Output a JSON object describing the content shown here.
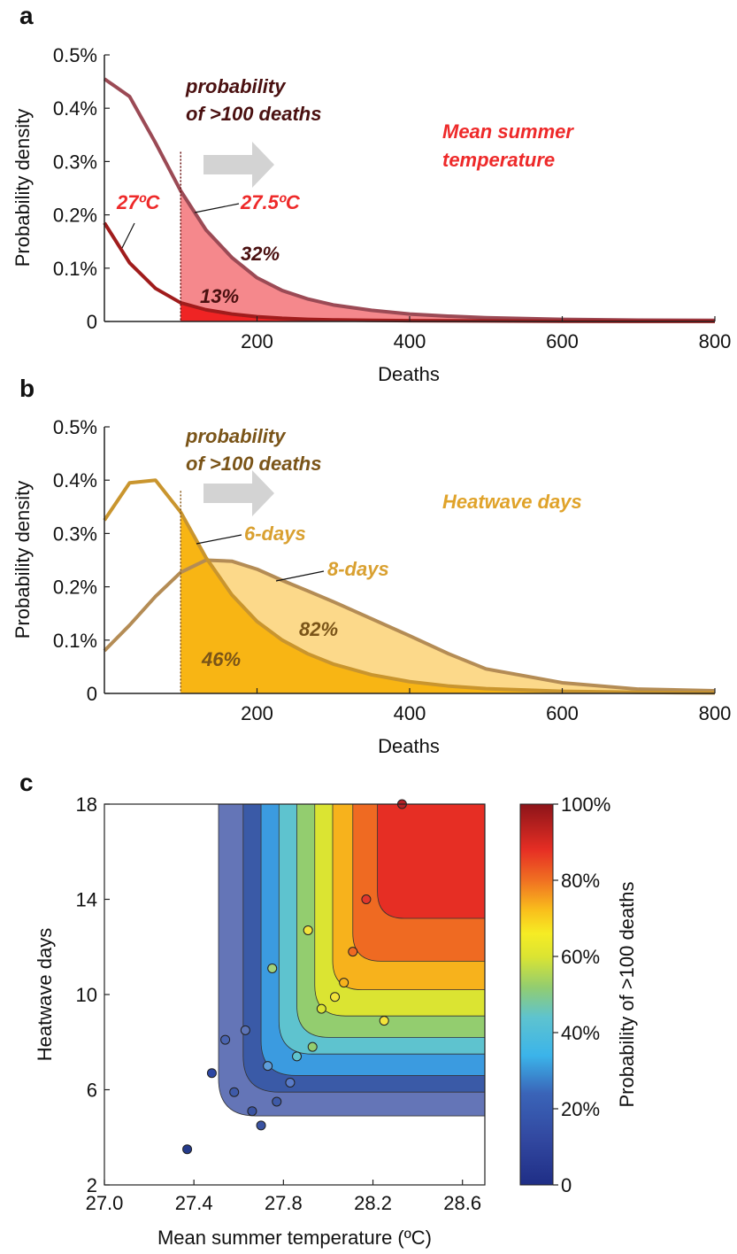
{
  "chart_data": [
    {
      "panel": "a",
      "type": "area",
      "xlabel": "Deaths",
      "ylabel": "Probability  density",
      "xlim": [
        0,
        800
      ],
      "ylim": [
        0,
        0.005
      ],
      "x_ticks": [
        "200",
        "400",
        "600",
        "800"
      ],
      "y_ticks": [
        "0",
        "0.1%",
        "0.2%",
        "0.3%",
        "0.4%",
        "0.5%"
      ],
      "threshold_x": 100,
      "arrow_label": [
        "probability",
        "of >100 deaths"
      ],
      "legend_title": [
        "Mean summer",
        "temperature"
      ],
      "series": [
        {
          "name": "27.5ºC",
          "color": "#9b4a55",
          "fill": "#f5888c",
          "x": [
            0,
            33,
            67,
            100,
            133,
            167,
            200,
            233,
            267,
            300,
            350,
            400,
            450,
            500,
            600,
            700,
            800
          ],
          "values": [
            0.00455,
            0.00422,
            0.00335,
            0.00245,
            0.00172,
            0.0012,
            0.00082,
            0.00058,
            0.00042,
            0.00031,
            0.00021,
            0.00014,
            0.0001,
            7e-05,
            4e-05,
            2.5e-05,
            2e-05
          ],
          "percent_label": "32%"
        },
        {
          "name": "27ºC",
          "color": "#a01c1c",
          "fill": "#ef2424",
          "x": [
            0,
            33,
            67,
            100,
            133,
            167,
            200,
            233,
            267,
            300,
            350,
            400,
            500,
            600,
            700,
            800
          ],
          "values": [
            0.00185,
            0.0011,
            0.00062,
            0.00035,
            0.00022,
            0.00014,
            9e-05,
            6e-05,
            4e-05,
            3e-05,
            2e-05,
            1.5e-05,
            1e-05,
            5e-06,
            3e-06,
            2e-06
          ],
          "percent_label": "13%"
        }
      ]
    },
    {
      "panel": "b",
      "type": "area",
      "xlabel": "Deaths",
      "ylabel": "Probability  density",
      "xlim": [
        0,
        800
      ],
      "ylim": [
        0,
        0.005
      ],
      "x_ticks": [
        "200",
        "400",
        "600",
        "800"
      ],
      "y_ticks": [
        "0",
        "0.1%",
        "0.2%",
        "0.3%",
        "0.4%",
        "0.5%"
      ],
      "threshold_x": 100,
      "arrow_label": [
        "probability",
        "of >100 deaths"
      ],
      "legend_title": [
        "Heatwave days"
      ],
      "series": [
        {
          "name": "8-days",
          "color": "#b48c55",
          "fill": "#fcd98a",
          "x": [
            0,
            33,
            67,
            100,
            133,
            167,
            200,
            233,
            267,
            300,
            350,
            400,
            450,
            500,
            600,
            700,
            800
          ],
          "values": [
            0.0008,
            0.00128,
            0.00182,
            0.00227,
            0.0025,
            0.00248,
            0.00233,
            0.00212,
            0.00192,
            0.00172,
            0.0014,
            0.00108,
            0.00075,
            0.00046,
            0.0002,
            8e-05,
            5e-05
          ],
          "percent_label": "82%"
        },
        {
          "name": "6-days",
          "color": "#c9952e",
          "fill": "#f8b514",
          "x": [
            0,
            33,
            67,
            100,
            133,
            167,
            200,
            233,
            267,
            300,
            350,
            400,
            450,
            500,
            600,
            700,
            800
          ],
          "values": [
            0.00325,
            0.00395,
            0.004,
            0.0034,
            0.00255,
            0.00185,
            0.00135,
            0.001,
            0.00074,
            0.00055,
            0.00035,
            0.00022,
            0.00014,
            9e-05,
            4e-05,
            2e-05,
            1e-05
          ],
          "percent_label": "46%"
        }
      ]
    },
    {
      "panel": "c",
      "type": "heatmap",
      "xlabel": "Mean summer temperature (ºC)",
      "ylabel": "Heatwave days",
      "xlim": [
        27.0,
        28.7
      ],
      "ylim": [
        2,
        18
      ],
      "x_ticks": [
        "27.0",
        "27.4",
        "27.8",
        "28.2",
        "28.6"
      ],
      "y_ticks": [
        "2",
        "6",
        "10",
        "14",
        "18"
      ],
      "colorbar_label": "Probability  of >100 deaths",
      "colorbar_ticks": [
        "0",
        "20%",
        "40%",
        "60%",
        "80%",
        "100%"
      ],
      "contour_bands": [
        {
          "level": 0.15,
          "color": "#6475b7",
          "x_edge": 27.51,
          "y_edge": 4.9
        },
        {
          "level": 0.25,
          "color": "#3a5aa7",
          "x_edge": 27.62,
          "y_edge": 5.9
        },
        {
          "level": 0.35,
          "color": "#3b9be0",
          "x_edge": 27.7,
          "y_edge": 6.6
        },
        {
          "level": 0.45,
          "color": "#5ec3cf",
          "x_edge": 27.78,
          "y_edge": 7.5
        },
        {
          "level": 0.55,
          "color": "#93cd6f",
          "x_edge": 27.86,
          "y_edge": 8.2
        },
        {
          "level": 0.65,
          "color": "#dbe432",
          "x_edge": 27.94,
          "y_edge": 9.1
        },
        {
          "level": 0.75,
          "color": "#f7b21c",
          "x_edge": 28.02,
          "y_edge": 10.2
        },
        {
          "level": 0.85,
          "color": "#ef6a22",
          "x_edge": 28.11,
          "y_edge": 11.4
        },
        {
          "level": 0.95,
          "color": "#e62e24",
          "x_edge": 28.22,
          "y_edge": 13.2
        }
      ],
      "points": [
        {
          "x": 28.33,
          "y": 18.0,
          "color": "#b52025"
        },
        {
          "x": 28.17,
          "y": 14.0,
          "color": "#e2372d"
        },
        {
          "x": 28.11,
          "y": 11.8,
          "color": "#ef6a22"
        },
        {
          "x": 27.91,
          "y": 12.7,
          "color": "#f2e33a"
        },
        {
          "x": 28.07,
          "y": 10.5,
          "color": "#f7b21c"
        },
        {
          "x": 27.75,
          "y": 11.1,
          "color": "#a2d27a"
        },
        {
          "x": 28.03,
          "y": 9.9,
          "color": "#f2e33a"
        },
        {
          "x": 27.97,
          "y": 9.4,
          "color": "#dbe432"
        },
        {
          "x": 28.25,
          "y": 8.9,
          "color": "#f2e33a"
        },
        {
          "x": 27.93,
          "y": 7.8,
          "color": "#93cd6f"
        },
        {
          "x": 27.86,
          "y": 7.4,
          "color": "#5ec3cf"
        },
        {
          "x": 27.54,
          "y": 8.1,
          "color": "#4a64b0"
        },
        {
          "x": 27.63,
          "y": 8.5,
          "color": "#5c74b7"
        },
        {
          "x": 27.73,
          "y": 7.0,
          "color": "#5e9ddb"
        },
        {
          "x": 27.48,
          "y": 6.7,
          "color": "#2d47a3"
        },
        {
          "x": 27.83,
          "y": 6.3,
          "color": "#5a7cc9"
        },
        {
          "x": 27.58,
          "y": 5.9,
          "color": "#3e5aa8"
        },
        {
          "x": 27.77,
          "y": 5.5,
          "color": "#3e5aa8"
        },
        {
          "x": 27.66,
          "y": 5.1,
          "color": "#3a53a2"
        },
        {
          "x": 27.7,
          "y": 4.5,
          "color": "#3a53a2"
        },
        {
          "x": 27.37,
          "y": 3.5,
          "color": "#243a8a"
        }
      ]
    }
  ]
}
